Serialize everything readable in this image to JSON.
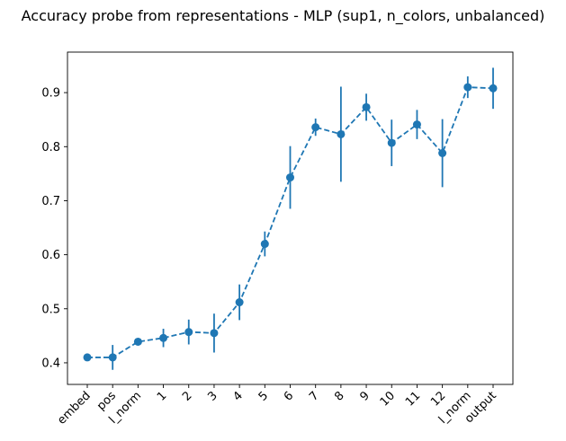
{
  "chart_data": {
    "type": "line",
    "title": "Accuracy probe from representations  - MLP (sup1, n_colors, unbalanced)",
    "xlabel": "",
    "ylabel": "",
    "categories": [
      "embed",
      "pos",
      "l_norm",
      "1",
      "2",
      "3",
      "4",
      "5",
      "6",
      "7",
      "8",
      "9",
      "10",
      "11",
      "12",
      "l_norm",
      "output"
    ],
    "series": [
      {
        "name": "accuracy",
        "color": "#1f77b4",
        "line_style": "dashed",
        "marker": "circle",
        "values": [
          0.41,
          0.41,
          0.439,
          0.446,
          0.457,
          0.455,
          0.512,
          0.62,
          0.743,
          0.836,
          0.823,
          0.873,
          0.807,
          0.841,
          0.788,
          0.91,
          0.908
        ],
        "error": [
          0.0,
          0.023,
          0.0,
          0.017,
          0.023,
          0.036,
          0.033,
          0.023,
          0.058,
          0.016,
          0.088,
          0.025,
          0.043,
          0.027,
          0.063,
          0.02,
          0.038
        ]
      }
    ],
    "yticks": [
      0.4,
      0.5,
      0.6,
      0.7,
      0.8,
      0.9
    ],
    "ytick_labels": [
      "0.4",
      "0.5",
      "0.6",
      "0.7",
      "0.8",
      "0.9"
    ],
    "ylim": [
      0.36,
      0.975
    ],
    "grid": false,
    "xtick_rotation": 45
  }
}
